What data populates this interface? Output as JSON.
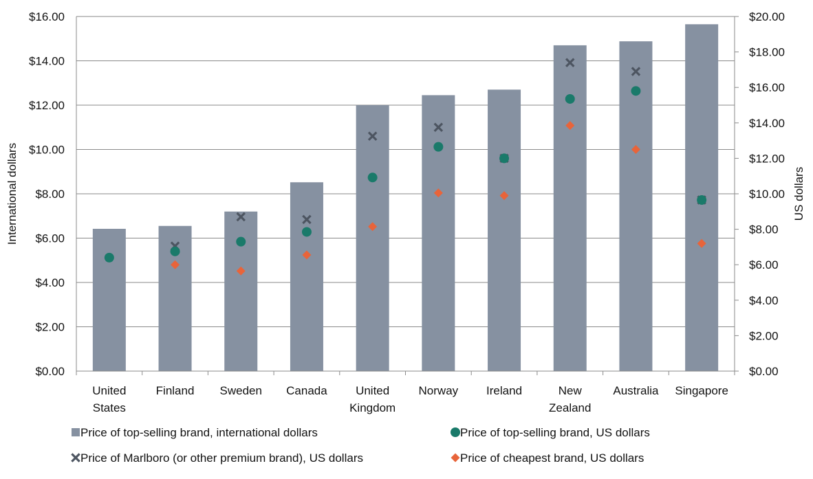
{
  "chart_data": {
    "type": "bar",
    "categories": [
      [
        "United",
        "States"
      ],
      [
        "Finland"
      ],
      [
        "Sweden"
      ],
      [
        "Canada"
      ],
      [
        "United",
        "Kingdom"
      ],
      [
        "Norway"
      ],
      [
        "Ireland"
      ],
      [
        "New",
        "Zealand"
      ],
      [
        "Australia"
      ],
      [
        "Singapore"
      ]
    ],
    "y_left": {
      "label": "International dollars",
      "ylim": [
        0,
        16
      ],
      "ticks": [
        "$0.00",
        "$2.00",
        "$4.00",
        "$6.00",
        "$8.00",
        "$10.00",
        "$12.00",
        "$14.00",
        "$16.00"
      ]
    },
    "y_right": {
      "label": "US dollars",
      "ylim": [
        0,
        20
      ],
      "ticks": [
        "$0.00",
        "$2.00",
        "$4.00",
        "$6.00",
        "$8.00",
        "$10.00",
        "$12.00",
        "$14.00",
        "$16.00",
        "$18.00",
        "$20.00"
      ]
    },
    "series": [
      {
        "name": "Price of top-selling brand, international dollars",
        "type": "bar",
        "axis": "left",
        "color": "#8691a1",
        "values": [
          6.42,
          6.55,
          7.2,
          8.52,
          12.0,
          12.45,
          12.7,
          14.7,
          14.88,
          15.65
        ]
      },
      {
        "name": "Price of top-selling brand, US dollars",
        "type": "scatter",
        "marker": "circle",
        "axis": "right",
        "color": "#1a7a6a",
        "values": [
          6.4,
          6.75,
          7.3,
          7.85,
          10.92,
          12.65,
          12.0,
          15.35,
          15.8,
          9.65
        ]
      },
      {
        "name": "Price of Marlboro (or other premium brand), US dollars",
        "type": "scatter",
        "marker": "x",
        "axis": "right",
        "color": "#4d5561",
        "values": [
          null,
          7.05,
          8.7,
          8.55,
          13.25,
          13.75,
          12.0,
          17.4,
          16.9,
          9.65
        ]
      },
      {
        "name": "Price of cheapest brand, US dollars",
        "type": "scatter",
        "marker": "diamond",
        "axis": "right",
        "color": "#e8643a",
        "values": [
          null,
          6.0,
          5.65,
          6.55,
          8.15,
          10.05,
          9.9,
          13.85,
          12.5,
          7.2
        ]
      }
    ],
    "grid": true,
    "legend_position": "bottom"
  }
}
